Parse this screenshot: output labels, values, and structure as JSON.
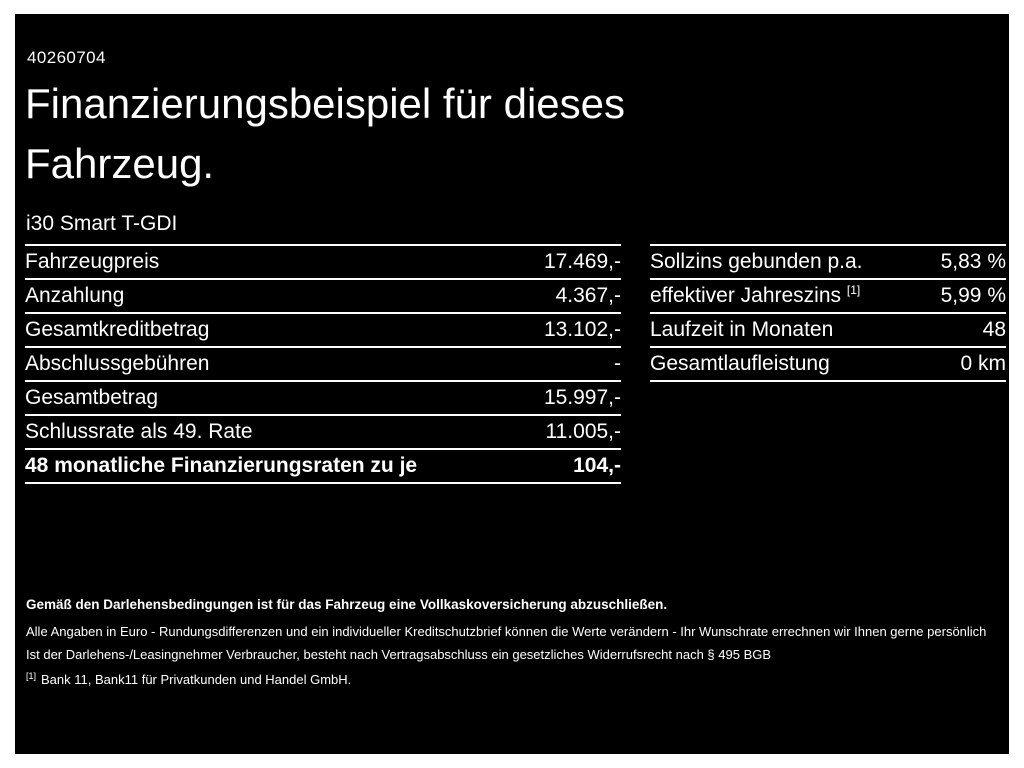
{
  "page": {
    "offer_id": "40260704",
    "title_line1": "Finanzierungsbeispiel für dieses",
    "title_line2": "Fahrzeug.",
    "vehicle_model": "i30 Smart T-GDI"
  },
  "colors": {
    "background": "#000000",
    "text": "#ffffff",
    "frame": "#ffffff"
  },
  "left_table": {
    "rows": [
      {
        "label": "Fahrzeugpreis",
        "value": "17.469,-"
      },
      {
        "label": "Anzahlung",
        "value": "4.367,-"
      },
      {
        "label": "Gesamtkreditbetrag",
        "value": "13.102,-"
      },
      {
        "label": "Abschlussgebühren",
        "value": "-"
      },
      {
        "label": "Gesamtbetrag",
        "value": "15.997,-"
      },
      {
        "label": "Schlussrate als 49. Rate",
        "value": "11.005,-"
      },
      {
        "label": "48 monatliche Finanzierungsraten zu je",
        "value": "104,-"
      }
    ]
  },
  "right_table": {
    "rows": [
      {
        "label": "Sollzins gebunden p.a.",
        "value": "5,83 %"
      },
      {
        "label": "effektiver Jahreszins",
        "sup": "[1]",
        "value": "5,99 %"
      },
      {
        "label": "Laufzeit in Monaten",
        "value": "48"
      },
      {
        "label": "Gesamtlaufleistung",
        "value": "0 km"
      }
    ]
  },
  "footnotes": {
    "insurance_note": "Gemäß den Darlehensbedingungen ist für das Fahrzeug eine Vollkaskoversicherung abzuschließen.",
    "rounding_note": "Alle Angaben in Euro - Rundungsdifferenzen und ein individueller Kreditschutzbrief können die Werte verändern - Ihr Wunschrate errechnen wir Ihnen gerne persönlich",
    "withdrawal_note": "Ist der Darlehens-/Leasingnehmer Verbraucher, besteht nach Vertragsabschluss ein gesetzliches Widerrufsrecht nach § 495 BGB",
    "bank_ref_marker": "[1]",
    "bank_note": "Bank 11, Bank11 für Privatkunden und Handel GmbH."
  }
}
